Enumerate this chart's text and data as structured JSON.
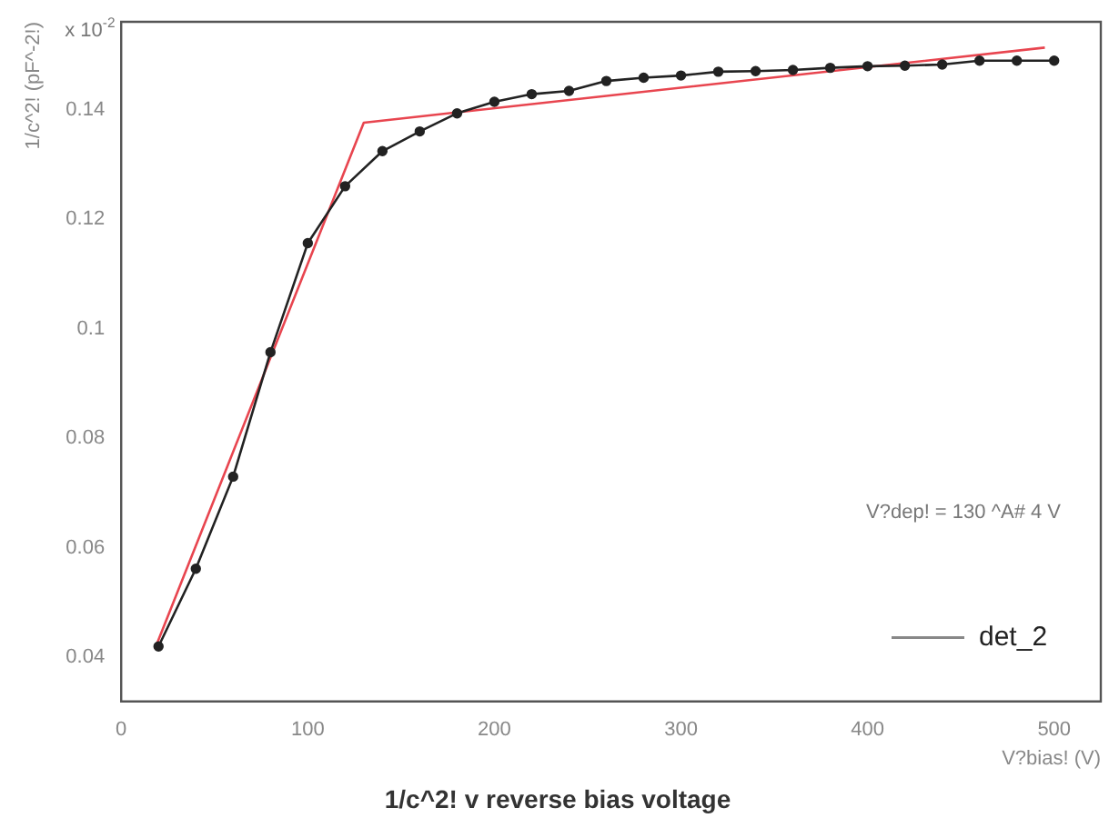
{
  "chart_data": {
    "type": "line",
    "title": "1/c^2! v reverse bias voltage",
    "xlabel": "V?bias! (V)",
    "ylabel": "1/c^2! (pF^-2!)",
    "annotations": [
      "x 10$^{-2}$",
      "V?dep! = 130 ^A# 4 V"
    ],
    "xlim": [
      0,
      525
    ],
    "xticks": [
      0,
      100,
      200,
      300,
      400,
      500
    ],
    "ylim": [
      0.032,
      0.156
    ],
    "yticks": [
      0.04,
      0.06,
      0.08,
      0.1,
      0.12,
      0.14
    ],
    "grid": false,
    "legend": "bottom right",
    "series": [
      {
        "name": "det_2",
        "color": "#222222",
        "marker": "circle",
        "line_style": "solid",
        "x": [
          20,
          40,
          60,
          80,
          100,
          120,
          140,
          160,
          180,
          200,
          220,
          240,
          260,
          280,
          300,
          320,
          340,
          360,
          380,
          400,
          420,
          440,
          460,
          480,
          500
        ],
        "values": [
          0.042,
          0.0562,
          0.073,
          0.0957,
          0.1156,
          0.126,
          0.1324,
          0.136,
          0.1393,
          0.1414,
          0.1428,
          0.1434,
          0.1452,
          0.1458,
          0.1462,
          0.1469,
          0.147,
          0.1472,
          0.1476,
          0.1479,
          0.148,
          0.1482,
          0.1489,
          0.1489,
          0.1489
        ]
      },
      {
        "color": "#e8454f",
        "marker": "none",
        "line_style": "solid",
        "x": [
          18,
          130,
          495
        ],
        "values": [
          0.0415,
          0.1376,
          0.1513
        ]
      }
    ]
  }
}
